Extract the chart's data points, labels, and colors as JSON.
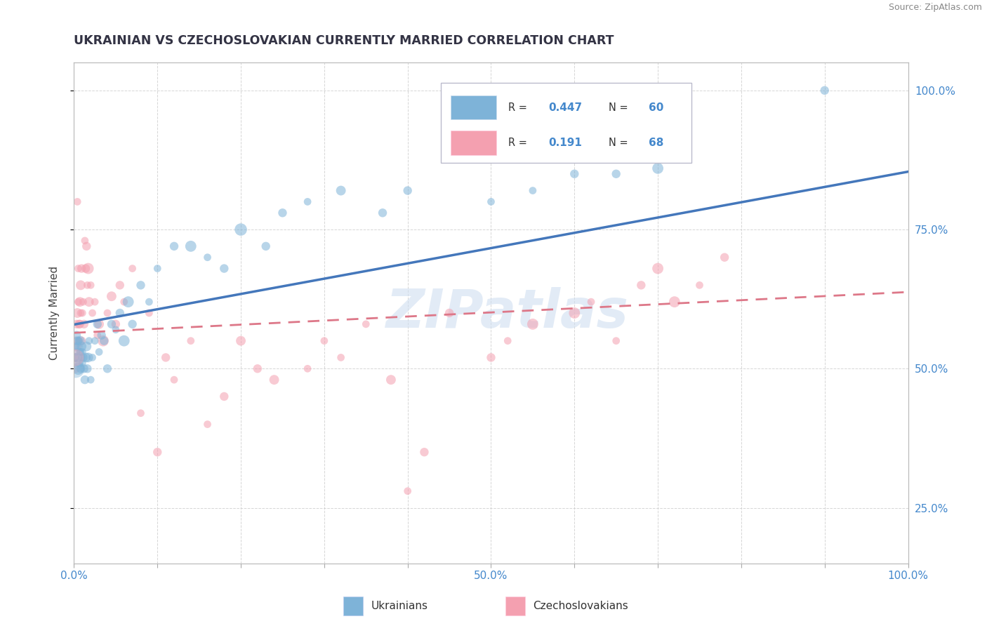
{
  "title": "UKRAINIAN VS CZECHOSLOVAKIAN CURRENTLY MARRIED CORRELATION CHART",
  "source": "Source: ZipAtlas.com",
  "ylabel": "Currently Married",
  "xlim": [
    0.0,
    1.0
  ],
  "ylim": [
    0.15,
    1.05
  ],
  "x_tick_positions": [
    0.0,
    0.1,
    0.2,
    0.3,
    0.4,
    0.5,
    0.6,
    0.7,
    0.8,
    0.9,
    1.0
  ],
  "x_tick_labels": [
    "0.0%",
    "",
    "",
    "",
    "",
    "50.0%",
    "",
    "",
    "",
    "",
    "100.0%"
  ],
  "y_tick_positions": [
    0.25,
    0.5,
    0.75,
    1.0
  ],
  "y_tick_labels_right": [
    "25.0%",
    "50.0%",
    "75.0%",
    "100.0%"
  ],
  "ukrainians_R": 0.447,
  "ukrainians_N": 60,
  "czechoslovakians_R": 0.191,
  "czechoslovakians_N": 68,
  "blue_color": "#7EB3D8",
  "pink_color": "#F4A0B0",
  "blue_line_color": "#4477BB",
  "pink_line_color": "#DD7788",
  "watermark_text": "ZIPatlas",
  "ukrainians_x": [
    0.001,
    0.002,
    0.003,
    0.003,
    0.004,
    0.004,
    0.005,
    0.005,
    0.006,
    0.006,
    0.007,
    0.007,
    0.008,
    0.008,
    0.009,
    0.009,
    0.01,
    0.01,
    0.011,
    0.012,
    0.013,
    0.014,
    0.015,
    0.016,
    0.017,
    0.018,
    0.02,
    0.022,
    0.025,
    0.028,
    0.03,
    0.033,
    0.036,
    0.04,
    0.045,
    0.05,
    0.055,
    0.06,
    0.065,
    0.07,
    0.08,
    0.09,
    0.1,
    0.12,
    0.14,
    0.16,
    0.18,
    0.2,
    0.23,
    0.25,
    0.28,
    0.32,
    0.37,
    0.4,
    0.5,
    0.55,
    0.6,
    0.65,
    0.7,
    0.9
  ],
  "ukrainians_y": [
    0.52,
    0.54,
    0.53,
    0.56,
    0.52,
    0.55,
    0.5,
    0.54,
    0.51,
    0.55,
    0.53,
    0.55,
    0.5,
    0.53,
    0.52,
    0.54,
    0.51,
    0.53,
    0.52,
    0.5,
    0.48,
    0.52,
    0.54,
    0.5,
    0.52,
    0.55,
    0.48,
    0.52,
    0.55,
    0.58,
    0.53,
    0.56,
    0.55,
    0.5,
    0.58,
    0.57,
    0.6,
    0.55,
    0.62,
    0.58,
    0.65,
    0.62,
    0.68,
    0.72,
    0.72,
    0.7,
    0.68,
    0.75,
    0.72,
    0.78,
    0.8,
    0.82,
    0.78,
    0.82,
    0.8,
    0.82,
    0.85,
    0.85,
    0.86,
    1.0
  ],
  "czechoslovakians_x": [
    0.001,
    0.002,
    0.002,
    0.003,
    0.003,
    0.004,
    0.004,
    0.005,
    0.005,
    0.006,
    0.006,
    0.007,
    0.007,
    0.008,
    0.008,
    0.009,
    0.009,
    0.01,
    0.011,
    0.012,
    0.013,
    0.014,
    0.015,
    0.016,
    0.017,
    0.018,
    0.02,
    0.022,
    0.025,
    0.028,
    0.03,
    0.035,
    0.04,
    0.045,
    0.05,
    0.055,
    0.06,
    0.07,
    0.08,
    0.09,
    0.1,
    0.11,
    0.12,
    0.14,
    0.16,
    0.18,
    0.2,
    0.22,
    0.24,
    0.28,
    0.3,
    0.32,
    0.35,
    0.38,
    0.4,
    0.42,
    0.45,
    0.5,
    0.52,
    0.55,
    0.6,
    0.62,
    0.65,
    0.68,
    0.7,
    0.72,
    0.75,
    0.78
  ],
  "czechoslovakians_y": [
    0.52,
    0.55,
    0.5,
    0.58,
    0.54,
    0.8,
    0.6,
    0.68,
    0.62,
    0.58,
    0.55,
    0.62,
    0.58,
    0.65,
    0.6,
    0.68,
    0.55,
    0.6,
    0.62,
    0.58,
    0.73,
    0.68,
    0.72,
    0.65,
    0.68,
    0.62,
    0.65,
    0.6,
    0.62,
    0.56,
    0.58,
    0.55,
    0.6,
    0.63,
    0.58,
    0.65,
    0.62,
    0.68,
    0.42,
    0.6,
    0.35,
    0.52,
    0.48,
    0.55,
    0.4,
    0.45,
    0.55,
    0.5,
    0.48,
    0.5,
    0.55,
    0.52,
    0.58,
    0.48,
    0.28,
    0.35,
    0.6,
    0.52,
    0.55,
    0.58,
    0.6,
    0.62,
    0.55,
    0.65,
    0.68,
    0.62,
    0.65,
    0.7
  ]
}
